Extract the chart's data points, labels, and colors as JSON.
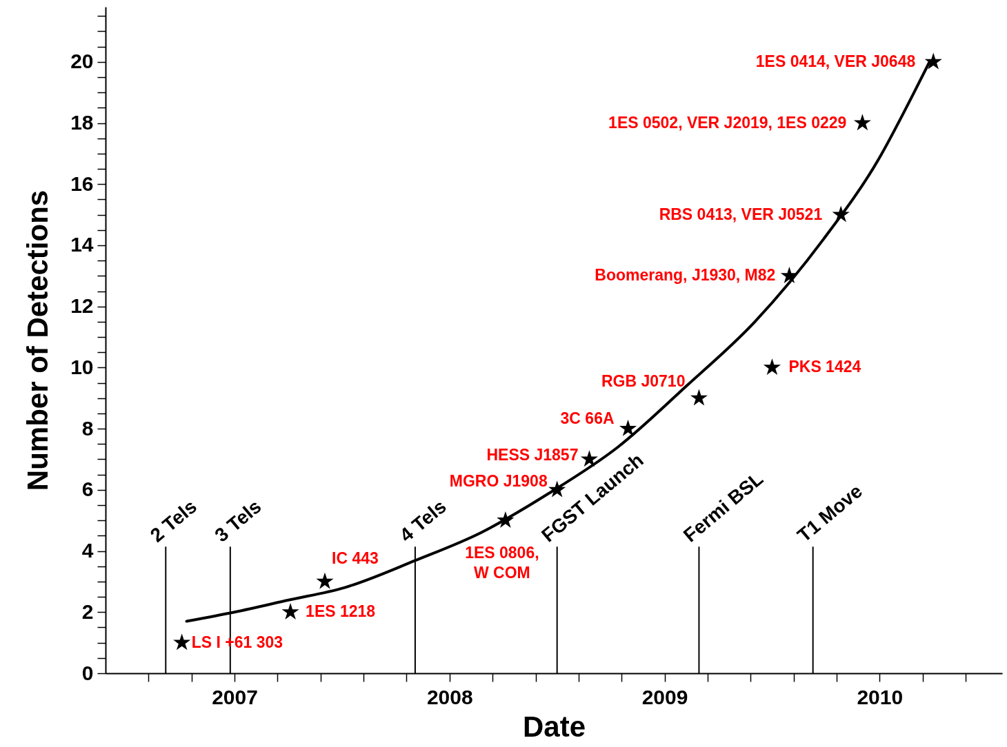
{
  "chart_data": {
    "type": "scatter",
    "xlabel": "Date",
    "ylabel": "Number of Detections",
    "series": [
      {
        "color": "#000000",
        "x": [
          2006.755,
          2007.26,
          2007.42,
          2008.26,
          2008.5,
          2008.65,
          2008.83,
          2009.16,
          2009.5,
          2009.58,
          2009.82,
          2009.92,
          2010.25
        ],
        "values": [
          1,
          2,
          3,
          5,
          6,
          7,
          8,
          9,
          10,
          13,
          15,
          18,
          20
        ]
      },
      {
        "type": "line",
        "marker": "none",
        "color": "#000000",
        "x": [
          2006.777,
          2007.0,
          2007.255,
          2007.51,
          2007.844,
          2008.146,
          2008.465,
          2008.783,
          2009.102,
          2009.42,
          2009.739,
          2009.994,
          2010.153,
          2010.232
        ],
        "values": [
          1.7,
          2.0,
          2.4,
          2.8,
          3.7,
          4.6,
          5.9,
          7.4,
          9.4,
          11.5,
          14.2,
          16.8,
          18.9,
          20.0
        ]
      }
    ],
    "marker": "star",
    "line_style": "solid",
    "xlim": [
      2006.4,
      2010.57
    ],
    "xticks": [
      {
        "value": 2006.6,
        "label": null
      },
      {
        "value": 2006.8,
        "label": null
      },
      2007,
      {
        "value": 2007.2,
        "label": null
      },
      {
        "value": 2007.4,
        "label": null
      },
      {
        "value": 2007.6,
        "label": null
      },
      {
        "value": 2007.8,
        "label": null
      },
      2008,
      {
        "value": 2008.2,
        "label": null
      },
      {
        "value": 2008.4,
        "label": null
      },
      {
        "value": 2008.6,
        "label": null
      },
      {
        "value": 2008.8,
        "label": null
      },
      2009,
      {
        "value": 2009.2,
        "label": null
      },
      {
        "value": 2009.4,
        "label": null
      },
      {
        "value": 2009.6,
        "label": null
      },
      {
        "value": 2009.8,
        "label": null
      },
      2010,
      {
        "value": 2010.2,
        "label": null
      },
      {
        "value": 2010.4,
        "label": null
      }
    ],
    "ylim": [
      0,
      21.8
    ],
    "yticks": [
      0,
      {
        "value": 0.5,
        "label": null
      },
      {
        "value": 1,
        "label": null
      },
      {
        "value": 1.5,
        "label": null
      },
      2,
      {
        "value": 2.5,
        "label": null
      },
      {
        "value": 3,
        "label": null
      },
      {
        "value": 3.5,
        "label": null
      },
      4,
      {
        "value": 4.5,
        "label": null
      },
      {
        "value": 5,
        "label": null
      },
      {
        "value": 5.5,
        "label": null
      },
      6,
      {
        "value": 6.5,
        "label": null
      },
      {
        "value": 7,
        "label": null
      },
      {
        "value": 7.5,
        "label": null
      },
      8,
      {
        "value": 8.5,
        "label": null
      },
      {
        "value": 9,
        "label": null
      },
      {
        "value": 9.5,
        "label": null
      },
      10,
      {
        "value": 10.5,
        "label": null
      },
      {
        "value": 11,
        "label": null
      },
      {
        "value": 11.5,
        "label": null
      },
      12,
      {
        "value": 12.5,
        "label": null
      },
      {
        "value": 13,
        "label": null
      },
      {
        "value": 13.5,
        "label": null
      },
      14,
      {
        "value": 14.5,
        "label": null
      },
      {
        "value": 15,
        "label": null
      },
      {
        "value": 15.5,
        "label": null
      },
      16,
      {
        "value": 16.5,
        "label": null
      },
      {
        "value": 17,
        "label": null
      },
      {
        "value": 17.5,
        "label": null
      },
      18,
      {
        "value": 18.5,
        "label": null
      },
      {
        "value": 19,
        "label": null
      },
      {
        "value": 19.5,
        "label": null
      },
      20,
      {
        "value": 20.5,
        "label": null
      },
      {
        "value": 21,
        "label": null
      },
      {
        "value": 21.5,
        "label": null
      }
    ],
    "ref_lines": [
      {
        "axis": "x",
        "value": 2006.68,
        "label": "2 Tels"
      },
      {
        "axis": "x",
        "value": 2006.98,
        "label": "3 Tels"
      },
      {
        "axis": "x",
        "value": 2007.84,
        "label": "4 Tels"
      },
      {
        "axis": "x",
        "value": 2008.5,
        "label": "FGST Launch"
      },
      {
        "axis": "x",
        "value": 2009.16,
        "label": "Fermi BSL"
      },
      {
        "axis": "x",
        "value": 2009.69,
        "label": "T1 Move"
      }
    ],
    "annotations": [
      {
        "text": "LS I +61 303",
        "x": 2006.755,
        "y": 1
      },
      {
        "text": "1ES 1218",
        "x": 2007.26,
        "y": 2
      },
      {
        "text": "IC 443",
        "x": 2007.42,
        "y": 3
      },
      {
        "text": "1ES 0806,\nW COM",
        "x": 2008.26,
        "y": 5
      },
      {
        "text": "MGRO J1908",
        "x": 2008.5,
        "y": 6
      },
      {
        "text": "HESS J1857",
        "x": 2008.65,
        "y": 7
      },
      {
        "text": "3C 66A",
        "x": 2008.83,
        "y": 8
      },
      {
        "text": "RGB J0710",
        "x": 2009.16,
        "y": 9
      },
      {
        "text": "PKS 1424",
        "x": 2009.5,
        "y": 10
      },
      {
        "text": "Boomerang, J1930, M82",
        "x": 2009.58,
        "y": 13
      },
      {
        "text": "RBS 0413, VER J0521",
        "x": 2009.82,
        "y": 15
      },
      {
        "text": "1ES 0502, VER J2019, 1ES 0229",
        "x": 2009.92,
        "y": 18
      },
      {
        "text": "1ES 0414, VER J0648",
        "x": 2010.25,
        "y": 20
      }
    ],
    "grid": false
  }
}
